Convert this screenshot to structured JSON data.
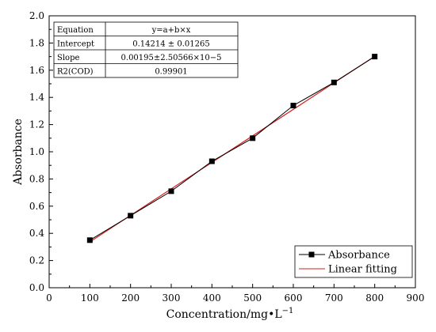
{
  "chart_data": {
    "type": "scatter",
    "xlabel": "Concentration/mg•L",
    "xlabel_sup": "−1",
    "ylabel": "Absorbance",
    "xlim": [
      0,
      900
    ],
    "ylim": [
      0,
      2.0
    ],
    "xticks": [
      0,
      100,
      200,
      300,
      400,
      500,
      600,
      700,
      800,
      900
    ],
    "yticks": [
      0.0,
      0.2,
      0.4,
      0.6,
      0.8,
      1.0,
      1.2,
      1.4,
      1.6,
      1.8,
      2.0
    ],
    "xtick_labels": [
      "0",
      "100",
      "200",
      "300",
      "400",
      "500",
      "600",
      "700",
      "800",
      "900"
    ],
    "ytick_labels": [
      "0.0",
      "0.2",
      "0.4",
      "0.6",
      "0.8",
      "1.0",
      "1.2",
      "1.4",
      "1.6",
      "1.8",
      "2.0"
    ],
    "grid": false,
    "legend_position": "bottom-right",
    "series": [
      {
        "name": "Absorbance",
        "kind": "line-marker",
        "color": "#000000",
        "x": [
          100,
          200,
          300,
          400,
          500,
          600,
          700,
          800
        ],
        "y": [
          0.35,
          0.53,
          0.71,
          0.93,
          1.1,
          1.34,
          1.51,
          1.7
        ]
      },
      {
        "name": "Linear fitting",
        "kind": "line",
        "color": "#d62020",
        "intercept": 0.14214,
        "slope": 0.00195,
        "x_range": [
          100,
          800
        ]
      }
    ],
    "fit_table": {
      "rows": [
        [
          "Equation",
          "y=a+b×x"
        ],
        [
          "Intercept",
          "0.14214 ± 0.01265"
        ],
        [
          "Slope",
          "0.00195±2.50566×10−5"
        ],
        [
          "R2(COD)",
          "0.99901"
        ]
      ]
    }
  }
}
